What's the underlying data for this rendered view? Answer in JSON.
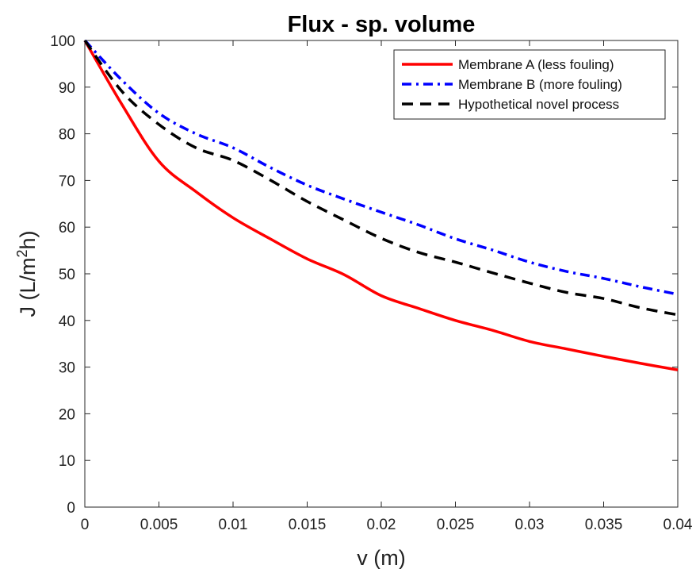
{
  "chart_data": {
    "type": "line",
    "title": "Flux - sp. volume",
    "xlabel": "v (m)",
    "ylabel_main": "J (L/m",
    "ylabel_sup": "2",
    "ylabel_tail": "h)",
    "xlim": [
      0,
      0.04
    ],
    "ylim": [
      0,
      100
    ],
    "grid": false,
    "legend_position": "top-right",
    "x_ticks": [
      0,
      0.005,
      0.01,
      0.015,
      0.02,
      0.025,
      0.03,
      0.035,
      0.04
    ],
    "x_tick_labels": [
      "0",
      "0.005",
      "0.01",
      "0.015",
      "0.02",
      "0.025",
      "0.03",
      "0.035",
      "0.04"
    ],
    "y_ticks": [
      0,
      10,
      20,
      30,
      40,
      50,
      60,
      70,
      80,
      90,
      100
    ],
    "y_tick_labels": [
      "0",
      "10",
      "20",
      "30",
      "40",
      "50",
      "60",
      "70",
      "80",
      "90",
      "100"
    ],
    "x": [
      0,
      0.0025,
      0.005,
      0.0075,
      0.01,
      0.0125,
      0.015,
      0.0175,
      0.02,
      0.0225,
      0.025,
      0.0275,
      0.03,
      0.0325,
      0.035,
      0.0375,
      0.04
    ],
    "series": [
      {
        "name": "Membrane A (less fouling)",
        "color": "#ff0000",
        "style": "solid",
        "values": [
          100,
          86.3,
          74.1,
          67.6,
          62.0,
          57.5,
          53.2,
          49.8,
          45.3,
          42.6,
          40.0,
          37.9,
          35.5,
          33.9,
          32.3,
          30.8,
          29.4
        ]
      },
      {
        "name": "Membrane B (more fouling)",
        "color": "#0000ff",
        "style": "dashdot",
        "values": [
          100,
          91.5,
          84.4,
          80.0,
          77.0,
          72.8,
          69.0,
          66.0,
          63.2,
          60.5,
          57.5,
          55.1,
          52.5,
          50.5,
          49.0,
          47.2,
          45.6
        ]
      },
      {
        "name": "Hypothetical novel process",
        "color": "#000000",
        "style": "dashed",
        "values": [
          100,
          89.1,
          82.0,
          77.0,
          74.3,
          70.1,
          65.5,
          61.5,
          57.6,
          54.6,
          52.5,
          50.2,
          48.0,
          46.0,
          44.7,
          42.7,
          41.2
        ]
      }
    ]
  }
}
